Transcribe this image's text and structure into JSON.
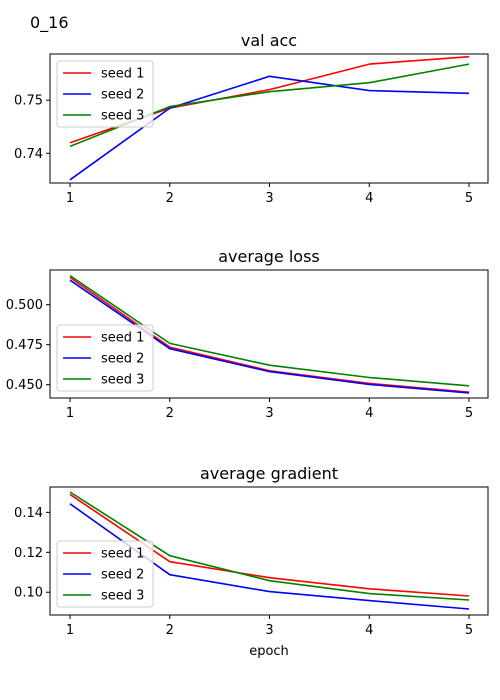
{
  "figure": {
    "title": "0_16",
    "colors": {
      "seed 1": "#ff0000",
      "seed 2": "#0000ff",
      "seed 3": "#008000"
    }
  },
  "chart_data": [
    {
      "type": "line",
      "title": "val acc",
      "xlabel": "",
      "ylabel": "",
      "x": [
        1,
        2,
        3,
        4,
        5
      ],
      "xticks": [
        "1",
        "2",
        "3",
        "4",
        "5"
      ],
      "yticks": [
        "0.74",
        "0.75"
      ],
      "ytick_values": [
        0.74,
        0.75
      ],
      "ylim": [
        0.7344,
        0.7587
      ],
      "legend": "upper left",
      "grid": false,
      "series": [
        {
          "name": "seed 1",
          "color": "#ff0000",
          "values": [
            0.742,
            0.7485,
            0.752,
            0.7568,
            0.7582
          ]
        },
        {
          "name": "seed 2",
          "color": "#0000ff",
          "values": [
            0.735,
            0.7485,
            0.7545,
            0.7518,
            0.7513
          ]
        },
        {
          "name": "seed 3",
          "color": "#008000",
          "values": [
            0.7413,
            0.7488,
            0.7516,
            0.7533,
            0.7568
          ]
        }
      ]
    },
    {
      "type": "line",
      "title": "average loss",
      "xlabel": "",
      "ylabel": "",
      "x": [
        1,
        2,
        3,
        4,
        5
      ],
      "xticks": [
        "1",
        "2",
        "3",
        "4",
        "5"
      ],
      "yticks": [
        "0.450",
        "0.475",
        "0.500"
      ],
      "ytick_values": [
        0.45,
        0.475,
        0.5
      ],
      "ylim": [
        0.4417,
        0.5217
      ],
      "legend": "center left",
      "grid": false,
      "series": [
        {
          "name": "seed 1",
          "color": "#ff0000",
          "values": [
            0.517,
            0.4735,
            0.4587,
            0.4508,
            0.4453
          ]
        },
        {
          "name": "seed 2",
          "color": "#0000ff",
          "values": [
            0.5153,
            0.4725,
            0.4582,
            0.4502,
            0.4449
          ]
        },
        {
          "name": "seed 3",
          "color": "#008000",
          "values": [
            0.5182,
            0.4758,
            0.4622,
            0.4545,
            0.4493
          ]
        }
      ]
    },
    {
      "type": "line",
      "title": "average gradient",
      "xlabel": "epoch",
      "ylabel": "",
      "x": [
        1,
        2,
        3,
        4,
        5
      ],
      "xticks": [
        "1",
        "2",
        "3",
        "4",
        "5"
      ],
      "yticks": [
        "0.10",
        "0.12",
        "0.14"
      ],
      "ytick_values": [
        0.1,
        0.12,
        0.14
      ],
      "ylim": [
        0.0886,
        0.1527
      ],
      "legend": "center left",
      "grid": false,
      "series": [
        {
          "name": "seed 1",
          "color": "#ff0000",
          "values": [
            0.149,
            0.1153,
            0.1073,
            0.1017,
            0.0981
          ]
        },
        {
          "name": "seed 2",
          "color": "#0000ff",
          "values": [
            0.1443,
            0.1088,
            0.1003,
            0.0958,
            0.0916
          ]
        },
        {
          "name": "seed 3",
          "color": "#008000",
          "values": [
            0.1502,
            0.1183,
            0.1058,
            0.0993,
            0.0961
          ]
        }
      ]
    }
  ]
}
